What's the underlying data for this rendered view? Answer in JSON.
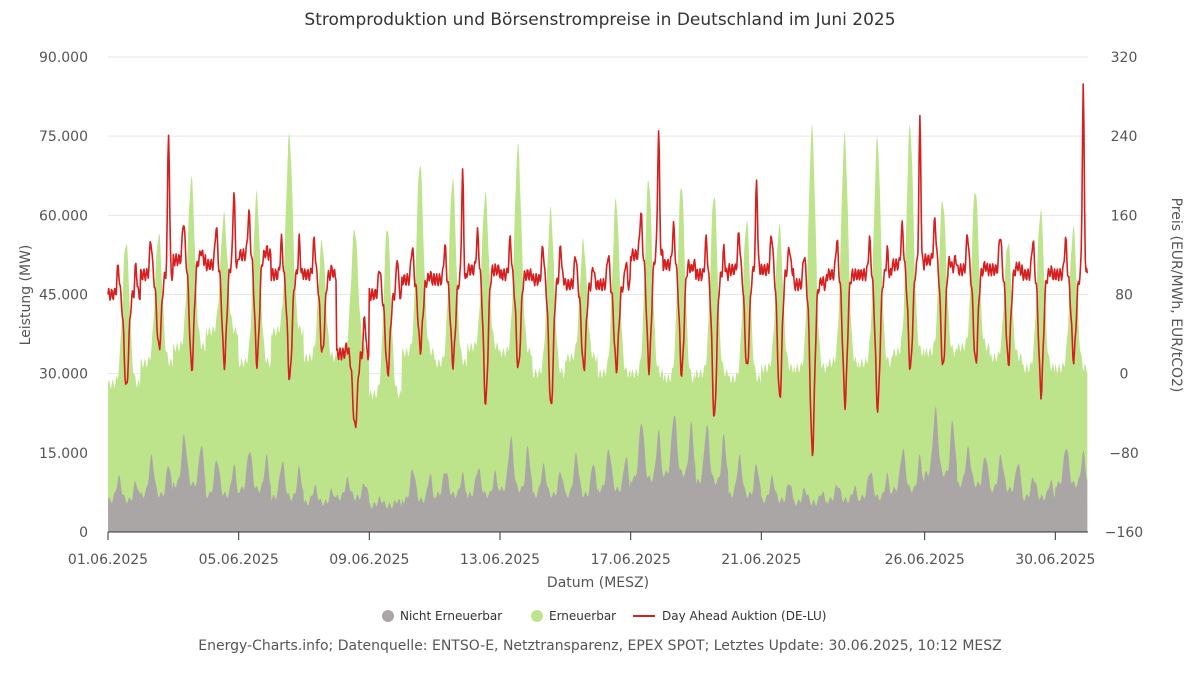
{
  "chart_data": {
    "type": "area",
    "title": "Stromproduktion und Börsenstrompreise in Deutschland im Juni 2025",
    "xlabel": "Datum (MESZ)",
    "ylabel": "Leistung (MW)",
    "y2label": "Preis (EUR/MWh, EUR/tCO2)",
    "x_range": [
      "2025-06-01",
      "2025-07-01"
    ],
    "x_ticks": [
      "01.06.2025",
      "05.06.2025",
      "09.06.2025",
      "13.06.2025",
      "17.06.2025",
      "21.06.2025",
      "26.06.2025",
      "30.06.2025"
    ],
    "ylim": [
      0,
      90000
    ],
    "y_ticks": [
      "0",
      "15.000",
      "30.000",
      "45.000",
      "60.000",
      "75.000",
      "90.000"
    ],
    "y2lim": [
      -160,
      320
    ],
    "y2_ticks": [
      "−160",
      "−80",
      "0",
      "80",
      "160",
      "240",
      "320"
    ],
    "legend_position": "bottom-center",
    "grid": true,
    "credits": "Energy-Charts.info; Datenquelle: ENTSO-E, Netztransparenz, EPEX SPOT; Letztes Update: 30.06.2025, 10:12 MESZ",
    "series": [
      {
        "name": "Nicht Erneuerbar",
        "color": "#aaa6a6",
        "stacked": true,
        "daily_peak_mw": [
          11000,
          15500,
          20000,
          15000,
          17000,
          14500,
          9000,
          10500,
          6500,
          13000,
          12500,
          13000,
          19500,
          13500,
          16000,
          17000,
          23000,
          24500,
          22000,
          15500,
          11000,
          8500,
          9500,
          12500,
          17000,
          25500,
          17000,
          15500,
          11000,
          17500
        ],
        "daily_min_mw": [
          6000,
          7000,
          9000,
          7000,
          8000,
          6500,
          5500,
          6500,
          5000,
          6000,
          7000,
          7000,
          8000,
          7000,
          7000,
          8000,
          10000,
          11000,
          9500,
          7000,
          6000,
          5500,
          6000,
          6500,
          8000,
          11000,
          9000,
          8000,
          6500,
          9000
        ]
      },
      {
        "name": "Erneuerbar",
        "color": "#bde38b",
        "stacked": true,
        "daily_peak_total_mw": [
          55000,
          56500,
          67000,
          60000,
          64000,
          75000,
          55000,
          57500,
          58000,
          70000,
          67000,
          64000,
          73000,
          61000,
          55000,
          63000,
          67000,
          66000,
          64000,
          59000,
          58000,
          76500,
          75000,
          74500,
          77000,
          63000,
          65000,
          55000,
          61000,
          57500
        ],
        "night_total_mw": [
          28000,
          32000,
          35000,
          38000,
          32000,
          38000,
          33000,
          34000,
          26000,
          34000,
          32000,
          35000,
          34000,
          30000,
          33000,
          30000,
          30000,
          29000,
          30000,
          29000,
          31000,
          31000,
          32000,
          32000,
          34000,
          34000,
          35000,
          33000,
          31000,
          31000
        ]
      },
      {
        "name": "Day Ahead Auktion (DE-LU)",
        "color": "#d62020",
        "axis": "right",
        "unit": "EUR/MWh",
        "daily_night_eur": [
          80,
          100,
          115,
          110,
          120,
          100,
          100,
          20,
          80,
          95,
          95,
          105,
          100,
          95,
          90,
          90,
          120,
          110,
          100,
          105,
          105,
          90,
          100,
          100,
          110,
          115,
          105,
          105,
          100,
          100
        ],
        "daily_evening_peak_eur": [
          110,
          245,
          125,
          185,
          125,
          135,
          105,
          60,
          120,
          100,
          205,
          105,
          100,
          130,
          110,
          115,
          245,
          105,
          125,
          195,
          130,
          95,
          100,
          125,
          255,
          105,
          110,
          110,
          105,
          290
        ],
        "daily_midday_low_eur": [
          -15,
          25,
          5,
          10,
          10,
          -5,
          20,
          -55,
          0,
          25,
          10,
          -30,
          5,
          -35,
          5,
          5,
          5,
          0,
          -45,
          5,
          -25,
          -80,
          -30,
          -35,
          5,
          5,
          10,
          10,
          -20,
          15
        ]
      }
    ]
  }
}
